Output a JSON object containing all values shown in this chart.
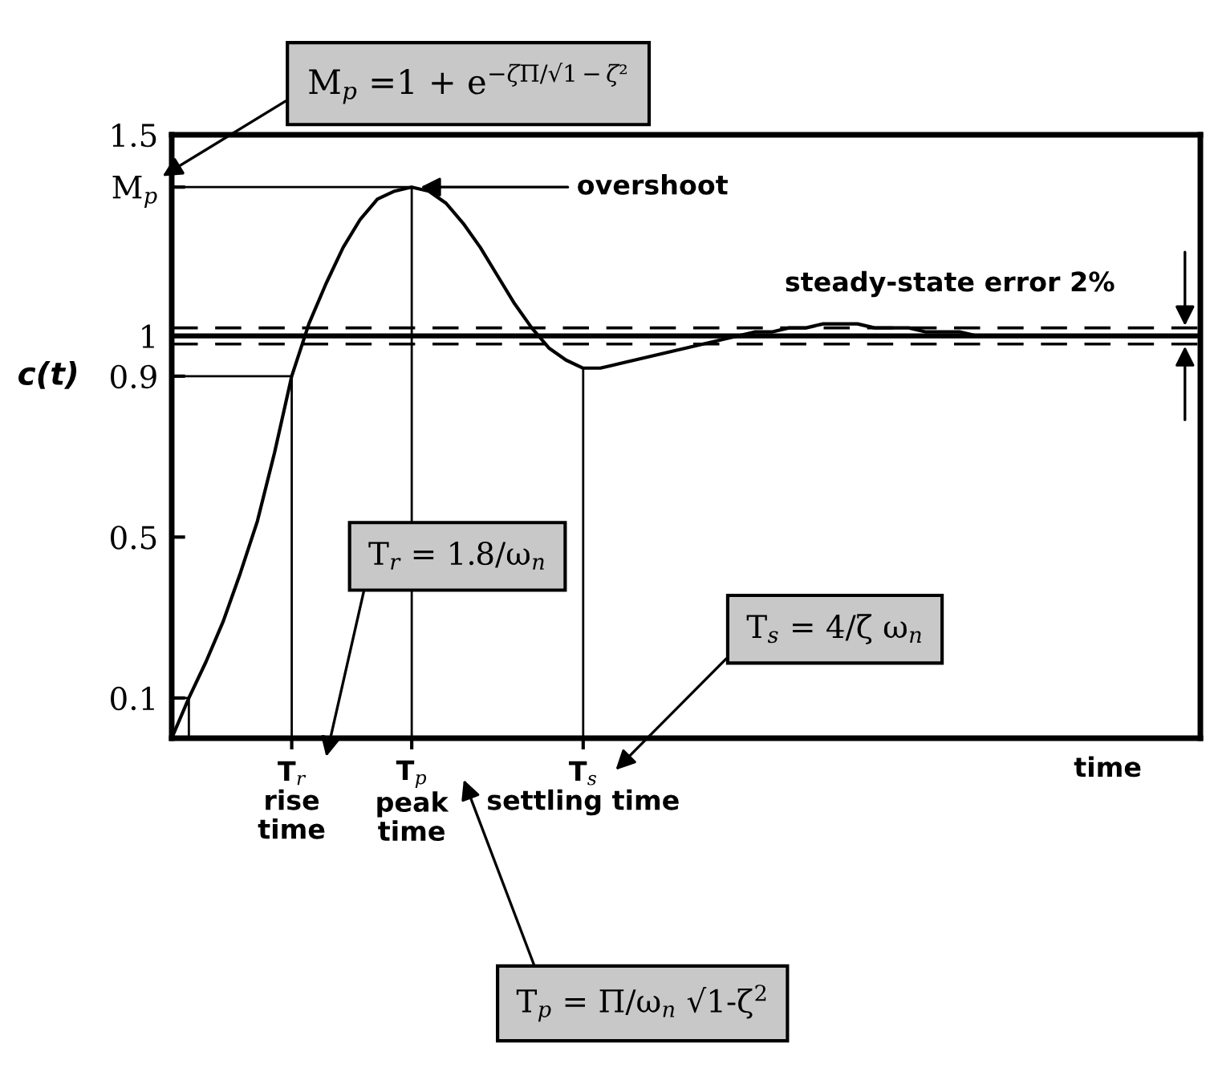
{
  "chart_data": {
    "type": "line",
    "xlabel": "time",
    "ylabel": "c(t)",
    "categories": [
      null,
      null,
      null,
      null,
      null,
      null,
      null,
      "T$_{r}$\nrise\ntime",
      null,
      null,
      null,
      null,
      null,
      null,
      "T$_{p}$\npeak\ntime",
      null,
      null,
      null,
      null,
      null,
      null,
      null,
      null,
      null,
      "T$_{s}$\nsettling time",
      null,
      null,
      null,
      null,
      null,
      null,
      null,
      null,
      null,
      null,
      null,
      null,
      null,
      null,
      null,
      null,
      null,
      null,
      null,
      null,
      null,
      null,
      null,
      null,
      null,
      null,
      null,
      null,
      null,
      null,
      null,
      null,
      null,
      null,
      null,
      null
    ],
    "series": [
      {
        "color": "#000000",
        "values": [
          0,
          0.1,
          0.19,
          0.29,
          0.41,
          0.54,
          0.71,
          0.9,
          1.03,
          1.13,
          1.22,
          1.29,
          1.34,
          1.36,
          1.37,
          1.36,
          1.33,
          1.28,
          1.22,
          1.15,
          1.08,
          1.02,
          0.97,
          0.94,
          0.92,
          0.92,
          0.93,
          0.94,
          0.95,
          0.96,
          0.97,
          0.98,
          0.99,
          1,
          1.01,
          1.01,
          1.02,
          1.02,
          1.03,
          1.03,
          1.03,
          1.02,
          1.02,
          1.02,
          1.01,
          1.01,
          1.01,
          1,
          1,
          1,
          1,
          1,
          1,
          1,
          1,
          1,
          1,
          1,
          1,
          1,
          1
        ]
      },
      {
        "type": "step",
        "color": "#000000",
        "values": [
          0.9,
          0.9,
          0.9,
          0.9,
          0.9,
          0.9,
          0.9,
          0,
          null,
          null,
          null,
          null,
          null,
          null,
          null,
          null,
          null,
          null,
          null,
          null,
          null,
          null,
          null,
          null,
          null,
          null,
          null,
          null,
          null,
          null,
          null,
          null,
          null,
          null,
          null,
          null,
          null,
          null,
          null,
          null,
          null,
          null,
          null,
          null,
          null,
          null,
          null,
          null,
          null,
          null,
          null,
          null,
          null,
          null,
          null,
          null,
          null,
          null,
          null,
          null,
          null
        ]
      },
      {
        "type": "step",
        "color": "#000000",
        "values": [
          1.37,
          1.37,
          1.37,
          1.37,
          1.37,
          1.37,
          1.37,
          1.37,
          1.37,
          1.37,
          1.37,
          1.37,
          1.37,
          1.37,
          0,
          null,
          null,
          null,
          null,
          null,
          null,
          null,
          null,
          null,
          null,
          null,
          null,
          null,
          null,
          null,
          null,
          null,
          null,
          null,
          null,
          null,
          null,
          null,
          null,
          null,
          null,
          null,
          null,
          null,
          null,
          null,
          null,
          null,
          null,
          null,
          null,
          null,
          null,
          null,
          null,
          null,
          null,
          null,
          null,
          null,
          null
        ]
      },
      {
        "type": "line",
        "color": "#000000",
        "x": [
          "T$_{s}$\nsettling time",
          "T$_{s}$\nsettling time"
        ],
        "values": [
          0,
          0.92
        ]
      }
    ],
    "ylim": [
      0,
      1.5
    ],
    "yticks": [
      0.1,
      0.5,
      0.9,
      1,
      {
        "value": 1.37,
        "label": "M$_{p}$"
      },
      1.5
    ],
    "ref_lines": [
      {
        "axis": "y",
        "value": 1
      },
      {
        "axis": "y",
        "value": 1.02,
        "line_style": "dashed"
      },
      {
        "axis": "y",
        "value": 0.98,
        "line_style": "dashed"
      }
    ],
    "annotations": [
      "M$_{p}$ =1 + e$^{−ζΠ/√1−ζ²}$",
      {
        "text": "overshoot",
        "x": "T$_{p}$\npeak\ntime",
        "y": 1.37
      },
      "T$_{r}$ = 1.8/ω$_{n}$",
      "T$_{s}$ = 4/ζ ω$_{n}$",
      "T$_{p}$ = Π/ω$_{n}$ √1-ζ$^{2}$",
      "steady-state error 2%"
    ]
  }
}
